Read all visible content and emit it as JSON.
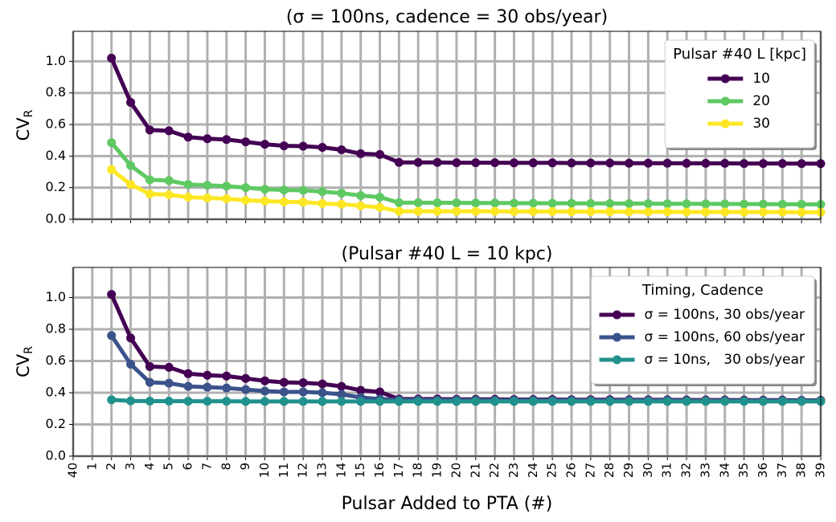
{
  "chart_data": [
    {
      "type": "line",
      "title": "(σ = 100ns, cadence = 30 obs/year)",
      "ylabel": {
        "text": "CV",
        "subscript": "R"
      },
      "ylim": [
        0,
        1.19
      ],
      "yticks": [
        {
          "value": 0,
          "label": "0.0"
        },
        {
          "value": 0.2,
          "label": "0.2"
        },
        {
          "value": 0.4,
          "label": "0.4"
        },
        {
          "value": 0.6,
          "label": "0.6"
        },
        {
          "value": 0.8,
          "label": "0.8"
        },
        {
          "value": 1,
          "label": "1.0"
        }
      ],
      "grid": true,
      "legend": "upper right",
      "legend_title": "Pulsar #40 L [kpc]",
      "series": [
        {
          "name": "10",
          "color": "#440154",
          "values": [
            null,
            null,
            1.02,
            0.74,
            0.565,
            0.56,
            0.52,
            0.51,
            0.505,
            0.49,
            0.475,
            0.465,
            0.463,
            0.455,
            0.44,
            0.415,
            0.41,
            0.36,
            0.36,
            0.36,
            0.358,
            0.358,
            0.358,
            0.357,
            0.357,
            0.357,
            0.356,
            0.356,
            0.356,
            0.355,
            0.355,
            0.355,
            0.354,
            0.354,
            0.354,
            0.353,
            0.353,
            0.353,
            0.352,
            0.352
          ]
        },
        {
          "name": "20",
          "color": "#5ec962",
          "values": [
            null,
            null,
            0.485,
            0.34,
            0.25,
            0.245,
            0.22,
            0.215,
            0.21,
            0.2,
            0.19,
            0.185,
            0.183,
            0.175,
            0.165,
            0.15,
            0.14,
            0.105,
            0.105,
            0.104,
            0.104,
            0.103,
            0.103,
            0.102,
            0.102,
            0.101,
            0.101,
            0.1,
            0.1,
            0.099,
            0.099,
            0.098,
            0.098,
            0.097,
            0.097,
            0.096,
            0.096,
            0.095,
            0.095,
            0.094
          ]
        },
        {
          "name": "30",
          "color": "#fde725",
          "values": [
            null,
            null,
            0.315,
            0.22,
            0.16,
            0.155,
            0.14,
            0.135,
            0.13,
            0.12,
            0.115,
            0.11,
            0.108,
            0.1,
            0.095,
            0.085,
            0.075,
            0.05,
            0.05,
            0.05,
            0.05,
            0.05,
            0.05,
            0.049,
            0.049,
            0.049,
            0.048,
            0.048,
            0.048,
            0.047,
            0.047,
            0.047,
            0.046,
            0.046,
            0.046,
            0.045,
            0.045,
            0.045,
            0.044,
            0.044
          ]
        }
      ]
    },
    {
      "type": "line",
      "title": "(Pulsar #40 L = 10 kpc)",
      "xlabel": "Pulsar Added to PTA (#)",
      "categories": [
        "40",
        "1",
        "2",
        "3",
        "4",
        "5",
        "6",
        "7",
        "8",
        "9",
        "10",
        "11",
        "12",
        "13",
        "14",
        "15",
        "16",
        "17",
        "18",
        "19",
        "20",
        "21",
        "22",
        "23",
        "24",
        "25",
        "26",
        "27",
        "28",
        "29",
        "30",
        "31",
        "32",
        "33",
        "34",
        "35",
        "36",
        "37",
        "38",
        "39"
      ],
      "ylabel": {
        "text": "CV",
        "subscript": "R"
      },
      "ylim": [
        0,
        1.19
      ],
      "yticks": [
        {
          "value": 0,
          "label": "0.0"
        },
        {
          "value": 0.2,
          "label": "0.2"
        },
        {
          "value": 0.4,
          "label": "0.4"
        },
        {
          "value": 0.6,
          "label": "0.6"
        },
        {
          "value": 0.8,
          "label": "0.8"
        },
        {
          "value": 1,
          "label": "1.0"
        }
      ],
      "grid": true,
      "legend": "upper right",
      "legend_title": "Timing, Cadence",
      "series": [
        {
          "name": "σ = 100ns, 30 obs/year",
          "color": "#440154",
          "values": [
            null,
            null,
            1.02,
            0.745,
            0.565,
            0.56,
            0.52,
            0.51,
            0.505,
            0.49,
            0.475,
            0.465,
            0.463,
            0.455,
            0.44,
            0.415,
            0.405,
            0.36,
            0.36,
            0.36,
            0.358,
            0.358,
            0.358,
            0.357,
            0.357,
            0.357,
            0.356,
            0.356,
            0.356,
            0.355,
            0.355,
            0.355,
            0.354,
            0.354,
            0.354,
            0.353,
            0.353,
            0.353,
            0.352,
            0.352
          ]
        },
        {
          "name": "σ = 100ns, 60 obs/year",
          "color": "#3b528b",
          "values": [
            null,
            null,
            0.76,
            0.58,
            0.465,
            0.46,
            0.44,
            0.435,
            0.43,
            0.42,
            0.41,
            0.405,
            0.405,
            0.4,
            0.39,
            0.37,
            0.36,
            0.355,
            0.355,
            0.354,
            0.354,
            0.354,
            0.353,
            0.353,
            0.353,
            0.352,
            0.352,
            0.352,
            0.351,
            0.351,
            0.351,
            0.351,
            0.35,
            0.35,
            0.35,
            0.35,
            0.35,
            0.35,
            0.35,
            0.35
          ]
        },
        {
          "name": "σ = 10ns,   30 obs/year",
          "color": "#21918c",
          "values": [
            null,
            null,
            0.355,
            0.348,
            0.347,
            0.347,
            0.346,
            0.346,
            0.346,
            0.345,
            0.345,
            0.345,
            0.345,
            0.345,
            0.345,
            0.345,
            0.345,
            0.345,
            0.345,
            0.345,
            0.345,
            0.345,
            0.345,
            0.345,
            0.345,
            0.345,
            0.345,
            0.345,
            0.345,
            0.345,
            0.345,
            0.345,
            0.345,
            0.345,
            0.345,
            0.345,
            0.345,
            0.345,
            0.345,
            0.345
          ]
        }
      ]
    }
  ]
}
